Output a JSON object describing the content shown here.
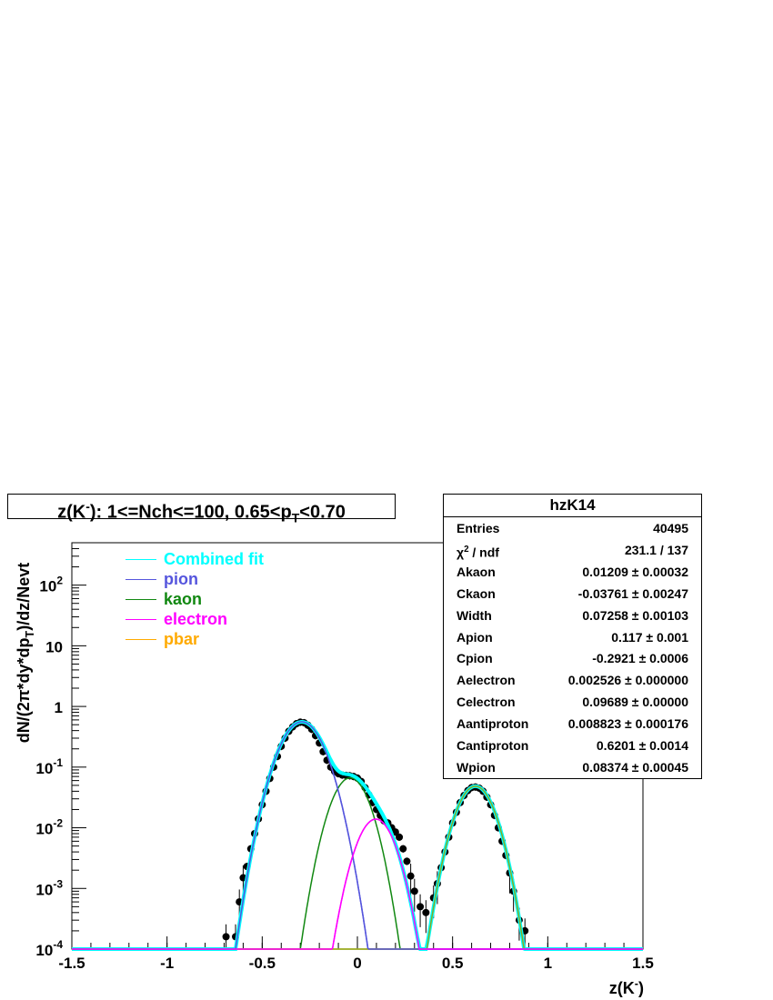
{
  "chart_data": {
    "type": "scatter",
    "title_main": "z(K",
    "title_sup": "-",
    "title_rest": "): 1<=Nch<=100, 0.65<p",
    "title_sub": "T",
    "title_end": "<0.70",
    "xlabel_main": "z(K",
    "xlabel_sup": "-",
    "xlabel_end": ")",
    "ylabel": "dN/(2π*dy*dp",
    "ylabel_sub": "T",
    "ylabel_end": ")/dz/Nevt",
    "xlim": [
      -1.5,
      1.5
    ],
    "ylim": [
      0.0001,
      500
    ],
    "yscale": "log",
    "x_ticks": [
      "-1.5",
      "-1",
      "-0.5",
      "0",
      "0.5",
      "1",
      "1.5"
    ],
    "y_ticks": [
      {
        "base": "10",
        "exp": "-4"
      },
      {
        "base": "10",
        "exp": "-3"
      },
      {
        "base": "10",
        "exp": "-2"
      },
      {
        "base": "10",
        "exp": "-1"
      },
      {
        "base": "1",
        "exp": ""
      },
      {
        "base": "10",
        "exp": ""
      },
      {
        "base": "10",
        "exp": "2"
      }
    ],
    "legend": [
      {
        "label": "Combined fit",
        "color": "#00ffff"
      },
      {
        "label": "pion",
        "color": "#5555dd"
      },
      {
        "label": "kaon",
        "color": "#118811"
      },
      {
        "label": "electron",
        "color": "#ff00ff"
      },
      {
        "label": "pbar",
        "color": "#ffaa00"
      }
    ],
    "series": [
      {
        "name": "pion",
        "color": "#5555dd",
        "A": 0.117,
        "C": -0.2921,
        "W": 0.08374
      },
      {
        "name": "kaon",
        "color": "#118811",
        "A": 0.01209,
        "C": -0.03761,
        "W": 0.07258
      },
      {
        "name": "electron",
        "color": "#ff00ff",
        "A": 0.002526,
        "C": 0.09689,
        "W": 0.07258
      },
      {
        "name": "pbar",
        "color": "#ffaa00",
        "A": 0.008823,
        "C": 0.6201,
        "W": 0.07258
      }
    ],
    "data_points": [
      {
        "x": -0.69,
        "y": 0.00016
      },
      {
        "x": -0.64,
        "y": 0.00016
      },
      {
        "x": -0.62,
        "y": 0.0006
      },
      {
        "x": -0.6,
        "y": 0.0015
      },
      {
        "x": -0.58,
        "y": 0.0023
      },
      {
        "x": -0.56,
        "y": 0.0045
      },
      {
        "x": -0.54,
        "y": 0.008
      },
      {
        "x": -0.52,
        "y": 0.014
      },
      {
        "x": -0.5,
        "y": 0.024
      },
      {
        "x": -0.48,
        "y": 0.04
      },
      {
        "x": -0.46,
        "y": 0.065
      },
      {
        "x": -0.44,
        "y": 0.1
      },
      {
        "x": -0.42,
        "y": 0.15
      },
      {
        "x": -0.4,
        "y": 0.22
      },
      {
        "x": -0.38,
        "y": 0.3
      },
      {
        "x": -0.36,
        "y": 0.39
      },
      {
        "x": -0.34,
        "y": 0.46
      },
      {
        "x": -0.32,
        "y": 0.52
      },
      {
        "x": -0.3,
        "y": 0.55
      },
      {
        "x": -0.28,
        "y": 0.54
      },
      {
        "x": -0.26,
        "y": 0.49
      },
      {
        "x": -0.24,
        "y": 0.42
      },
      {
        "x": -0.22,
        "y": 0.33
      },
      {
        "x": -0.2,
        "y": 0.25
      },
      {
        "x": -0.18,
        "y": 0.18
      },
      {
        "x": -0.16,
        "y": 0.13
      },
      {
        "x": -0.14,
        "y": 0.1
      },
      {
        "x": -0.12,
        "y": 0.085
      },
      {
        "x": -0.1,
        "y": 0.078
      },
      {
        "x": -0.08,
        "y": 0.074
      },
      {
        "x": -0.06,
        "y": 0.073
      },
      {
        "x": -0.04,
        "y": 0.072
      },
      {
        "x": -0.02,
        "y": 0.07
      },
      {
        "x": 0.0,
        "y": 0.066
      },
      {
        "x": 0.02,
        "y": 0.058
      },
      {
        "x": 0.04,
        "y": 0.046
      },
      {
        "x": 0.06,
        "y": 0.035
      },
      {
        "x": 0.08,
        "y": 0.026
      },
      {
        "x": 0.1,
        "y": 0.02
      },
      {
        "x": 0.12,
        "y": 0.016
      },
      {
        "x": 0.14,
        "y": 0.013
      },
      {
        "x": 0.16,
        "y": 0.012
      },
      {
        "x": 0.18,
        "y": 0.01
      },
      {
        "x": 0.2,
        "y": 0.0085
      },
      {
        "x": 0.22,
        "y": 0.007
      },
      {
        "x": 0.24,
        "y": 0.0045
      },
      {
        "x": 0.26,
        "y": 0.0028
      },
      {
        "x": 0.28,
        "y": 0.0016
      },
      {
        "x": 0.3,
        "y": 0.0009
      },
      {
        "x": 0.33,
        "y": 0.0005
      },
      {
        "x": 0.36,
        "y": 0.0004
      },
      {
        "x": 0.4,
        "y": 0.0007
      },
      {
        "x": 0.42,
        "y": 0.0012
      },
      {
        "x": 0.44,
        "y": 0.0022
      },
      {
        "x": 0.46,
        "y": 0.004
      },
      {
        "x": 0.48,
        "y": 0.007
      },
      {
        "x": 0.5,
        "y": 0.012
      },
      {
        "x": 0.52,
        "y": 0.018
      },
      {
        "x": 0.54,
        "y": 0.026
      },
      {
        "x": 0.56,
        "y": 0.034
      },
      {
        "x": 0.58,
        "y": 0.041
      },
      {
        "x": 0.6,
        "y": 0.046
      },
      {
        "x": 0.62,
        "y": 0.047
      },
      {
        "x": 0.64,
        "y": 0.045
      },
      {
        "x": 0.66,
        "y": 0.04
      },
      {
        "x": 0.68,
        "y": 0.032
      },
      {
        "x": 0.7,
        "y": 0.024
      },
      {
        "x": 0.72,
        "y": 0.016
      },
      {
        "x": 0.74,
        "y": 0.01
      },
      {
        "x": 0.76,
        "y": 0.006
      },
      {
        "x": 0.78,
        "y": 0.0035
      },
      {
        "x": 0.8,
        "y": 0.0018
      },
      {
        "x": 0.82,
        "y": 0.0009
      },
      {
        "x": 0.85,
        "y": 0.0003
      },
      {
        "x": 0.88,
        "y": 0.0002
      }
    ],
    "stats": {
      "name": "hzK14",
      "rows": [
        {
          "key": "Entries",
          "value": "40495"
        },
        {
          "key_main": "χ",
          "key_sup": "2",
          "key_end": " / ndf",
          "value": "231.1 / 137"
        },
        {
          "key": "Akaon",
          "value": "0.01209 ± 0.00032"
        },
        {
          "key": "Ckaon",
          "value": "-0.03761 ± 0.00247"
        },
        {
          "key": "Width",
          "value": "0.07258 ± 0.00103"
        },
        {
          "key": "Apion",
          "value": "0.117 ± 0.001"
        },
        {
          "key": "Cpion",
          "value": "-0.2921 ± 0.0006"
        },
        {
          "key": "Aelectron",
          "value": "0.002526 ± 0.000000"
        },
        {
          "key": "Celectron",
          "value": "0.09689 ± 0.00000"
        },
        {
          "key": "Aantiproton",
          "value": "0.008823 ± 0.000176"
        },
        {
          "key": "Cantiproton",
          "value": "0.6201 ± 0.0014"
        },
        {
          "key": "Wpion",
          "value": "0.08374 ± 0.00045"
        }
      ]
    }
  }
}
